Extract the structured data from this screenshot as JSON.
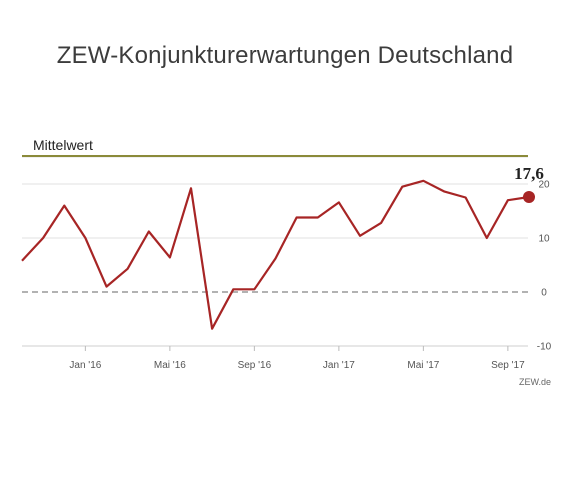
{
  "chart_data": {
    "type": "line",
    "title": "ZEW-Konjunkturerwartungen Deutschland",
    "xlabel": "",
    "ylabel": "",
    "ylim": [
      -10,
      25
    ],
    "y_ticks": [
      20,
      10,
      0,
      -10
    ],
    "x_ticks": [
      {
        "label": "Jan '16",
        "index": 3
      },
      {
        "label": "Mai '16",
        "index": 7
      },
      {
        "label": "Sep '16",
        "index": 11
      },
      {
        "label": "Jan '17",
        "index": 15
      },
      {
        "label": "Mai '17",
        "index": 19
      },
      {
        "label": "Sep '17",
        "index": 23
      }
    ],
    "series": [
      {
        "color": "#a72525",
        "values": [
          5.8,
          10.0,
          16.0,
          10.0,
          1.0,
          4.3,
          11.2,
          6.4,
          19.2,
          -6.8,
          0.5,
          0.5,
          6.2,
          13.8,
          13.8,
          16.6,
          10.4,
          12.8,
          19.5,
          20.6,
          18.6,
          17.5,
          10.0,
          17.0,
          17.6
        ],
        "end_marker": true
      }
    ],
    "mean_line": {
      "label": "Mittelwert",
      "value": 24.5,
      "color": "#8b8a3a"
    },
    "zero_line": {
      "value": 0,
      "style": "dashed",
      "color": "#999999"
    },
    "grid": true,
    "annotation": {
      "text": "17,6"
    },
    "source": "ZEW.de"
  }
}
